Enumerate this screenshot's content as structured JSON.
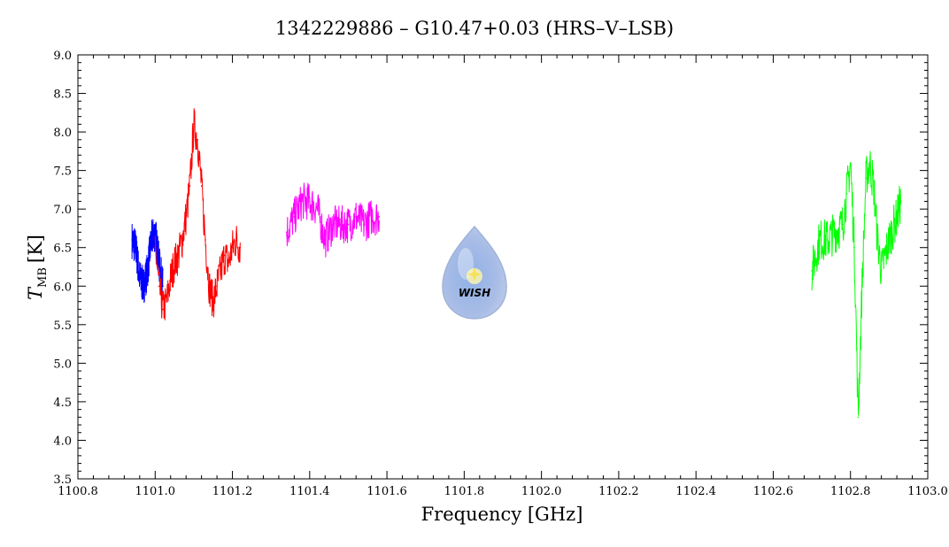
{
  "chart_data": {
    "type": "line",
    "title": "1342229886 – G10.47+0.03 (HRS–V–LSB)",
    "xlabel": "Frequency [GHz]",
    "ylabel_main": "T",
    "ylabel_sub": "MB",
    "ylabel_unit": "[K]",
    "xlim": [
      1100.8,
      1103.0
    ],
    "ylim": [
      3.5,
      9.0
    ],
    "x_ticks": [
      "1100.8",
      "1101.0",
      "1101.2",
      "1101.4",
      "1101.6",
      "1101.8",
      "1102.0",
      "1102.2",
      "1102.4",
      "1102.6",
      "1102.8",
      "1103.0"
    ],
    "y_ticks": [
      "3.5",
      "4.0",
      "4.5",
      "5.0",
      "5.5",
      "6.0",
      "6.5",
      "7.0",
      "7.5",
      "8.0",
      "8.5",
      "9.0"
    ],
    "grid": false,
    "logo_text": "WISH",
    "series": [
      {
        "color": "#0000ff",
        "x": [
          1100.94,
          1100.95,
          1100.96,
          1100.97,
          1100.98,
          1100.99,
          1101.0,
          1101.01,
          1101.02
        ],
        "y": [
          6.6,
          6.5,
          6.1,
          6.0,
          6.2,
          6.6,
          6.7,
          6.3,
          6.0
        ]
      },
      {
        "color": "#ff0000",
        "x": [
          1101.0,
          1101.01,
          1101.02,
          1101.03,
          1101.04,
          1101.05,
          1101.06,
          1101.07,
          1101.08,
          1101.09,
          1101.1,
          1101.11,
          1101.12,
          1101.13,
          1101.14,
          1101.15,
          1101.16,
          1101.17,
          1101.18,
          1101.19,
          1101.2,
          1101.21,
          1101.22
        ],
        "y": [
          6.5,
          6.0,
          5.7,
          5.8,
          6.1,
          6.3,
          6.4,
          6.6,
          6.9,
          7.3,
          8.1,
          7.9,
          7.3,
          6.6,
          6.0,
          5.8,
          6.0,
          6.2,
          6.4,
          6.3,
          6.5,
          6.6,
          6.5
        ]
      },
      {
        "color": "#ff00ff",
        "x": [
          1101.34,
          1101.36,
          1101.38,
          1101.4,
          1101.42,
          1101.44,
          1101.46,
          1101.48,
          1101.5,
          1101.52,
          1101.54,
          1101.56,
          1101.58
        ],
        "y": [
          6.7,
          6.9,
          7.1,
          7.1,
          7.0,
          6.6,
          6.8,
          6.8,
          6.8,
          6.9,
          6.8,
          6.9,
          6.9
        ]
      },
      {
        "color": "#00ff00",
        "x": [
          1102.7,
          1102.72,
          1102.74,
          1102.76,
          1102.78,
          1102.79,
          1102.8,
          1102.81,
          1102.82,
          1102.83,
          1102.84,
          1102.85,
          1102.86,
          1102.87,
          1102.88,
          1102.9,
          1102.92,
          1102.93
        ],
        "y": [
          6.2,
          6.6,
          6.6,
          6.7,
          6.8,
          7.2,
          7.6,
          6.5,
          4.3,
          6.0,
          7.4,
          7.6,
          7.3,
          6.6,
          6.2,
          6.6,
          6.9,
          7.1
        ]
      }
    ]
  }
}
